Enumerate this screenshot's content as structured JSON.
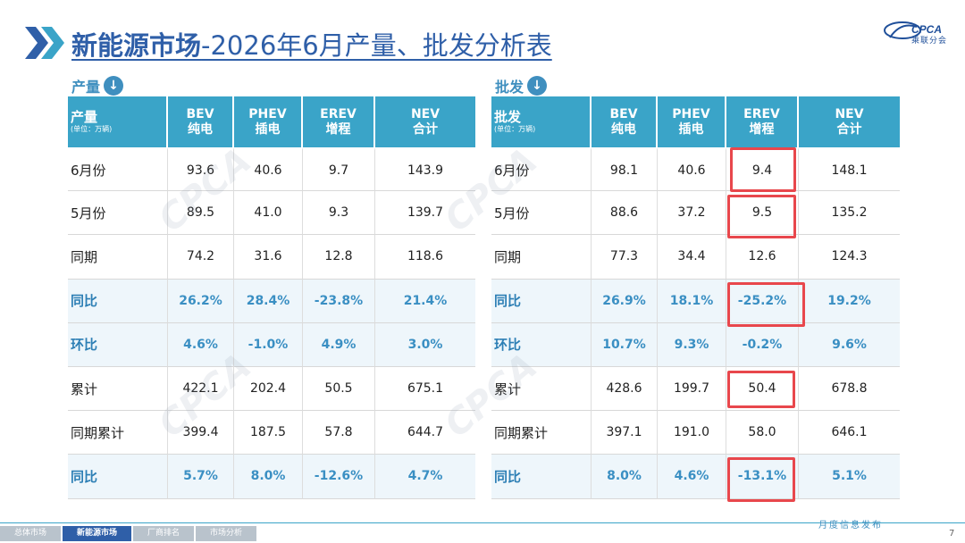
{
  "header": {
    "title_bold": "新能源市场",
    "title_rest": "-2026年6月产量、批发分析表",
    "logo_text": "CPCA",
    "logo_sub": "乘联分会"
  },
  "production": {
    "section_label": "产量",
    "head_main": "产量",
    "head_unit": "(单位：万辆)",
    "columns": [
      {
        "l1": "BEV",
        "l2": "纯电"
      },
      {
        "l1": "PHEV",
        "l2": "插电"
      },
      {
        "l1": "EREV",
        "l2": "增程"
      },
      {
        "l1": "NEV",
        "l2": "合计"
      }
    ],
    "rows": [
      {
        "label": "6月份",
        "v": [
          "93.6",
          "40.6",
          "9.7",
          "143.9"
        ]
      },
      {
        "label": "5月份",
        "v": [
          "89.5",
          "41.0",
          "9.3",
          "139.7"
        ]
      },
      {
        "label": "同期",
        "v": [
          "74.2",
          "31.6",
          "12.8",
          "118.6"
        ]
      },
      {
        "label": "同比",
        "v": [
          "26.2%",
          "28.4%",
          "-23.8%",
          "21.4%"
        ]
      },
      {
        "label": "环比",
        "v": [
          "4.6%",
          "-1.0%",
          "4.9%",
          "3.0%"
        ]
      },
      {
        "label": "累计",
        "v": [
          "422.1",
          "202.4",
          "50.5",
          "675.1"
        ]
      },
      {
        "label": "同期累计",
        "v": [
          "399.4",
          "187.5",
          "57.8",
          "644.7"
        ]
      },
      {
        "label": "同比",
        "v": [
          "5.7%",
          "8.0%",
          "-12.6%",
          "4.7%"
        ]
      }
    ]
  },
  "wholesale": {
    "section_label": "批发",
    "head_main": "批发",
    "head_unit": "(单位：万辆)",
    "columns": [
      {
        "l1": "BEV",
        "l2": "纯电"
      },
      {
        "l1": "PHEV",
        "l2": "插电"
      },
      {
        "l1": "EREV",
        "l2": "增程"
      },
      {
        "l1": "NEV",
        "l2": "合计"
      }
    ],
    "rows": [
      {
        "label": "6月份",
        "v": [
          "98.1",
          "40.6",
          "9.4",
          "148.1"
        ]
      },
      {
        "label": "5月份",
        "v": [
          "88.6",
          "37.2",
          "9.5",
          "135.2"
        ]
      },
      {
        "label": "同期",
        "v": [
          "77.3",
          "34.4",
          "12.6",
          "124.3"
        ]
      },
      {
        "label": "同比",
        "v": [
          "26.9%",
          "18.1%",
          "-25.2%",
          "19.2%"
        ]
      },
      {
        "label": "环比",
        "v": [
          "10.7%",
          "9.3%",
          "-0.2%",
          "9.6%"
        ]
      },
      {
        "label": "累计",
        "v": [
          "428.6",
          "199.7",
          "50.4",
          "678.8"
        ]
      },
      {
        "label": "同期累计",
        "v": [
          "397.1",
          "191.0",
          "58.0",
          "646.1"
        ]
      },
      {
        "label": "同比",
        "v": [
          "8.0%",
          "4.6%",
          "-13.1%",
          "5.1%"
        ]
      }
    ]
  },
  "footer": {
    "tabs": [
      "总体市场",
      "新能源市场",
      "厂商排名",
      "市场分析"
    ],
    "active_tab": "新能源市场",
    "right_text": "月度信息发布",
    "page_number": "7"
  },
  "colors": {
    "header_blue": "#3aa4c8",
    "title_blue": "#2f5fa8",
    "highlight_red": "#e8474c"
  }
}
